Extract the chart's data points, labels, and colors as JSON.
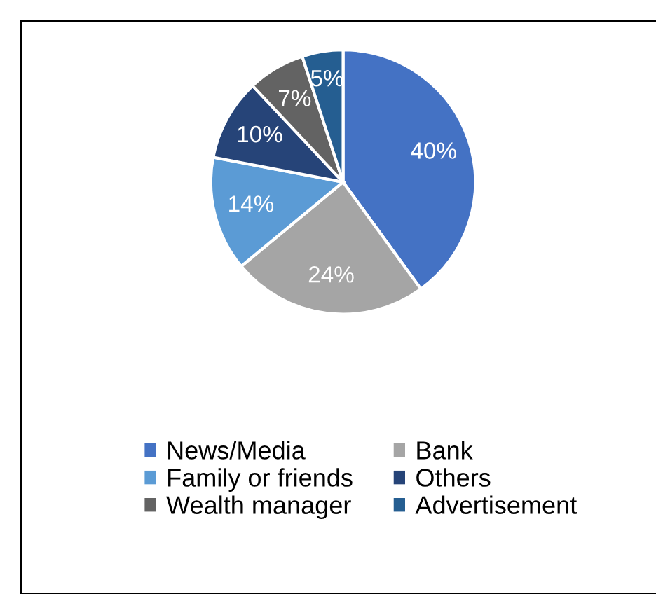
{
  "chart_data": {
    "type": "pie",
    "categories": [
      "News/Media",
      "Bank",
      "Family or friends",
      "Others",
      "Wealth manager",
      "Advertisement"
    ],
    "values": [
      40,
      24,
      14,
      10,
      7,
      5
    ],
    "colors": [
      "#4472c4",
      "#a5a5a5",
      "#5b9bd5",
      "#264478",
      "#636363",
      "#255e91"
    ],
    "value_labels": [
      "40%",
      "24%",
      "14%",
      "10%",
      "7%",
      "5%"
    ],
    "legend": "bottom"
  }
}
